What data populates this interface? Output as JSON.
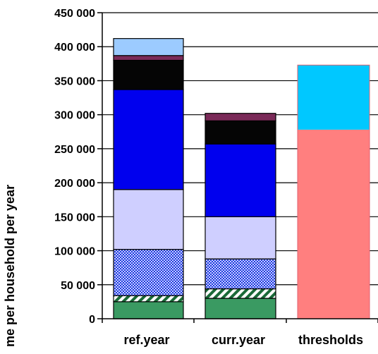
{
  "chart_data": {
    "type": "bar",
    "stacked": true,
    "categories": [
      "ref.year",
      "curr.year",
      "thresholds"
    ],
    "ylabel": "me per household per year",
    "ylim": [
      0,
      450000
    ],
    "yticks": [
      0,
      50000,
      100000,
      150000,
      200000,
      250000,
      300000,
      350000,
      400000,
      450000
    ],
    "ytick_labels": [
      "0",
      "50 000",
      "100 000",
      "150 000",
      "200 000",
      "250 000",
      "300 000",
      "350 000",
      "400 000",
      "450 000"
    ],
    "grid": true,
    "segments": [
      {
        "category": "ref.year",
        "color": "#3a9a62",
        "pattern": "solid",
        "from": 0,
        "to": 25000
      },
      {
        "category": "ref.year",
        "color": "#1a6a38",
        "pattern": "diagonal-stripes",
        "from": 25000,
        "to": 34000
      },
      {
        "category": "ref.year",
        "color": "#1d38e0",
        "pattern": "checkered",
        "from": 34000,
        "to": 102000
      },
      {
        "category": "ref.year",
        "color": "#cfcfff",
        "pattern": "solid",
        "from": 102000,
        "to": 190000
      },
      {
        "category": "ref.year",
        "color": "#0000ee",
        "pattern": "solid",
        "from": 190000,
        "to": 337000
      },
      {
        "category": "ref.year",
        "color": "#050505",
        "pattern": "solid",
        "from": 337000,
        "to": 380000
      },
      {
        "category": "ref.year",
        "color": "#7a2a58",
        "pattern": "solid",
        "from": 380000,
        "to": 387000
      },
      {
        "category": "ref.year",
        "color": "#9ccbff",
        "pattern": "solid",
        "from": 387000,
        "to": 412000
      },
      {
        "category": "curr.year",
        "color": "#3a9a62",
        "pattern": "solid",
        "from": 0,
        "to": 30000
      },
      {
        "category": "curr.year",
        "color": "#1a6a38",
        "pattern": "diagonal-stripes",
        "from": 30000,
        "to": 44000
      },
      {
        "category": "curr.year",
        "color": "#1d38e0",
        "pattern": "checkered",
        "from": 44000,
        "to": 88000
      },
      {
        "category": "curr.year",
        "color": "#cfcfff",
        "pattern": "solid",
        "from": 88000,
        "to": 150000
      },
      {
        "category": "curr.year",
        "color": "#0000ee",
        "pattern": "solid",
        "from": 150000,
        "to": 257000
      },
      {
        "category": "curr.year",
        "color": "#050505",
        "pattern": "solid",
        "from": 257000,
        "to": 291000
      },
      {
        "category": "curr.year",
        "color": "#7a2a58",
        "pattern": "solid",
        "from": 291000,
        "to": 302000
      },
      {
        "category": "thresholds",
        "color": "#ff7f7f",
        "pattern": "solid",
        "from": 0,
        "to": 278000
      },
      {
        "category": "thresholds",
        "color": "#00c8ff",
        "pattern": "solid",
        "from": 278000,
        "to": 373000
      }
    ]
  }
}
